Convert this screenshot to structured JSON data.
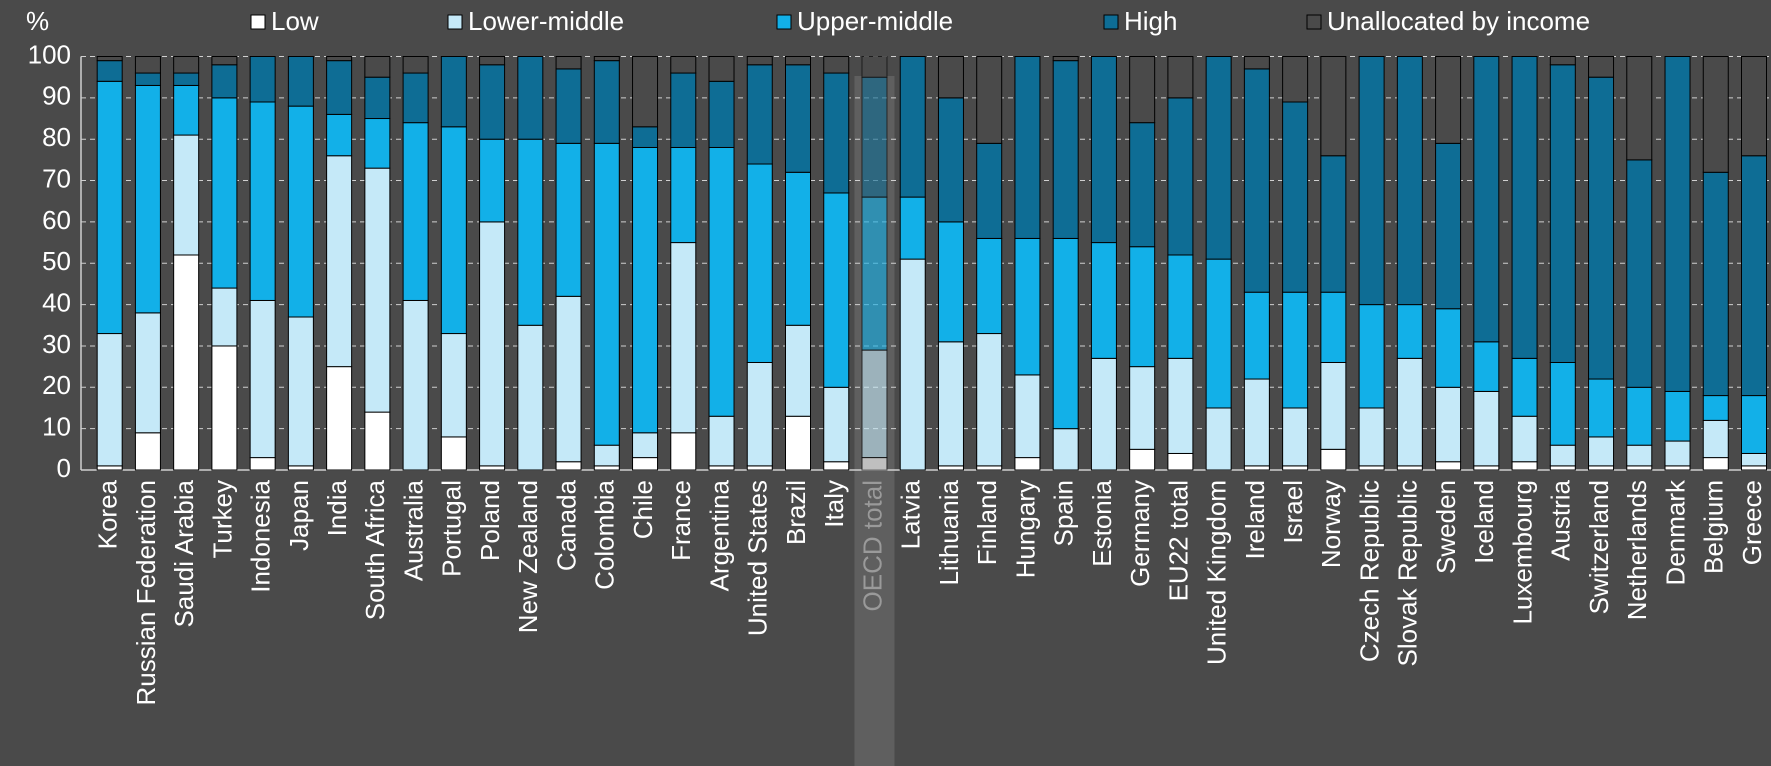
{
  "chart_data": {
    "type": "stacked_bar",
    "ylabel": "%",
    "categories": [
      "Korea",
      "Russian Federation",
      "Saudi Arabia",
      "Turkey",
      "Indonesia",
      "Japan",
      "India",
      "South Africa",
      "Australia",
      "Portugal",
      "Poland",
      "New Zealand",
      "Canada",
      "Colombia",
      "Chile",
      "France",
      "Argentina",
      "United States",
      "Brazil",
      "Italy",
      "OECD total",
      "Latvia",
      "Lithuania",
      "Finland",
      "Hungary",
      "Spain",
      "Estonia",
      "Germany",
      "EU22 total",
      "United Kingdom",
      "Ireland",
      "Israel",
      "Norway",
      "Czech Republic",
      "Slovak Republic",
      "Sweden",
      "Iceland",
      "Luxembourg",
      "Austria",
      "Switzerland",
      "Netherlands",
      "Denmark",
      "Belgium",
      "Greece"
    ],
    "series": [
      {
        "name": "Low",
        "color": "#ffffff",
        "values": [
          1,
          9,
          52,
          30,
          3,
          1,
          25,
          14,
          0,
          8,
          1,
          0,
          2,
          1,
          3,
          9,
          1,
          1,
          13,
          2,
          3,
          0,
          1,
          1,
          3,
          0,
          0,
          5,
          4,
          0,
          1,
          1,
          5,
          1,
          1,
          2,
          1,
          2,
          1,
          1,
          1,
          1,
          3,
          1
        ]
      },
      {
        "name": "Lower-middle",
        "color": "#c5e9f8",
        "values": [
          32,
          29,
          29,
          14,
          38,
          36,
          51,
          59,
          41,
          25,
          59,
          35,
          40,
          5,
          6,
          46,
          12,
          25,
          22,
          18,
          26,
          51,
          30,
          32,
          20,
          10,
          27,
          20,
          23,
          15,
          21,
          14,
          21,
          14,
          26,
          18,
          18,
          11,
          5,
          7,
          5,
          6,
          9,
          3
        ]
      },
      {
        "name": "Upper-middle",
        "color": "#12b0e8",
        "values": [
          61,
          55,
          12,
          46,
          48,
          51,
          10,
          12,
          43,
          50,
          20,
          45,
          37,
          73,
          69,
          23,
          65,
          48,
          37,
          47,
          37,
          15,
          29,
          23,
          33,
          46,
          28,
          29,
          25,
          36,
          21,
          28,
          17,
          25,
          13,
          19,
          12,
          14,
          20,
          14,
          14,
          12,
          6,
          14
        ]
      },
      {
        "name": "High",
        "color": "#0e6d95",
        "values": [
          5,
          3,
          3,
          8,
          11,
          12,
          13,
          10,
          12,
          17,
          18,
          20,
          18,
          20,
          5,
          18,
          16,
          24,
          26,
          29,
          29,
          34,
          30,
          23,
          44,
          43,
          45,
          30,
          38,
          49,
          54,
          46,
          33,
          60,
          60,
          40,
          69,
          73,
          72,
          73,
          55,
          81,
          54,
          58
        ]
      },
      {
        "name": "Unallocated by income",
        "color": "#4a4a4a",
        "values": [
          1,
          4,
          4,
          2,
          0,
          0,
          1,
          5,
          4,
          0,
          2,
          0,
          3,
          1,
          17,
          4,
          6,
          2,
          2,
          4,
          5,
          0,
          10,
          21,
          0,
          1,
          0,
          16,
          10,
          0,
          3,
          11,
          24,
          0,
          0,
          21,
          0,
          0,
          2,
          5,
          25,
          0,
          28,
          24
        ]
      }
    ],
    "highlight": "OECD total",
    "ylim": [
      0,
      100
    ],
    "yticks": [
      0,
      10,
      20,
      30,
      40,
      50,
      60,
      70,
      80,
      90,
      100
    ],
    "grid": true
  }
}
